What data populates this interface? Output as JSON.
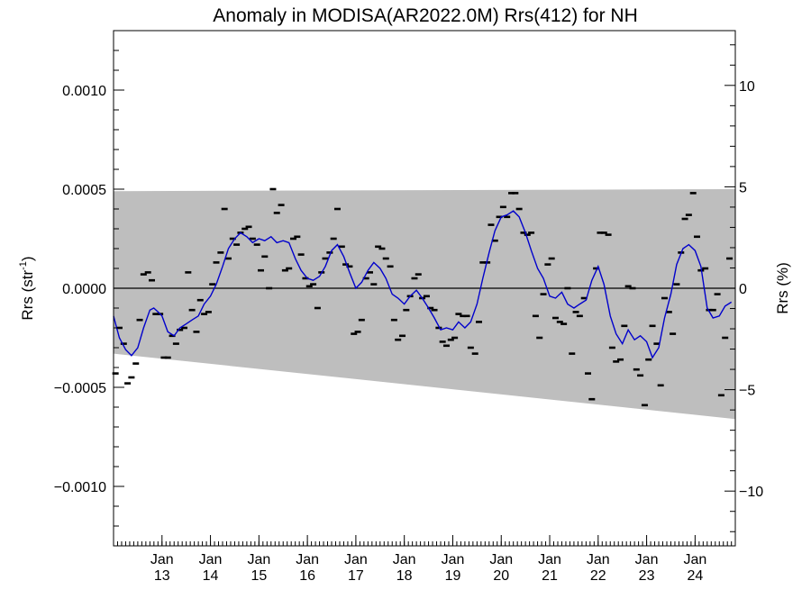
{
  "chart_data": {
    "type": "line",
    "title": "Anomaly in MODISA(AR2022.0M) Rrs(412) for NH",
    "ylabel_left": "Rrs (str",
    "ylabel_left_sup": "-1",
    "ylabel_left_close": ")",
    "ylabel_right": "Rrs (%)",
    "xlim": [
      2012.0,
      2024.83
    ],
    "ylim_left": [
      -0.0013,
      0.0013
    ],
    "ylim_right": [
      -12.7,
      12.7
    ],
    "left_ticks": [
      {
        "value": 0.001,
        "label": "0.0010"
      },
      {
        "value": 0.0005,
        "label": "0.0005"
      },
      {
        "value": 0.0,
        "label": "0.0000"
      },
      {
        "value": -0.0005,
        "label": "−0.0005"
      },
      {
        "value": -0.001,
        "label": "−0.0010"
      }
    ],
    "right_ticks": [
      {
        "value": 10,
        "label": "10"
      },
      {
        "value": 5,
        "label": "5"
      },
      {
        "value": 0,
        "label": "0"
      },
      {
        "value": -5,
        "label": "−5"
      },
      {
        "value": -10,
        "label": "−10"
      }
    ],
    "x_ticks": [
      {
        "value": 2013.0,
        "line1": "Jan",
        "line2": "13"
      },
      {
        "value": 2014.0,
        "line1": "Jan",
        "line2": "14"
      },
      {
        "value": 2015.0,
        "line1": "Jan",
        "line2": "15"
      },
      {
        "value": 2016.0,
        "line1": "Jan",
        "line2": "16"
      },
      {
        "value": 2017.0,
        "line1": "Jan",
        "line2": "17"
      },
      {
        "value": 2018.0,
        "line1": "Jan",
        "line2": "18"
      },
      {
        "value": 2019.0,
        "line1": "Jan",
        "line2": "19"
      },
      {
        "value": 2020.0,
        "line1": "Jan",
        "line2": "20"
      },
      {
        "value": 2021.0,
        "line1": "Jan",
        "line2": "21"
      },
      {
        "value": 2022.0,
        "line1": "Jan",
        "line2": "22"
      },
      {
        "value": 2023.0,
        "line1": "Jan",
        "line2": "23"
      },
      {
        "value": 2024.0,
        "line1": "Jan",
        "line2": "24"
      }
    ],
    "envelope": {
      "color": "#bebebe",
      "upper": [
        [
          2012.0,
          0.00049
        ],
        [
          2024.83,
          0.0005
        ]
      ],
      "lower": [
        [
          2012.0,
          -0.00033
        ],
        [
          2024.83,
          -0.00066
        ]
      ]
    },
    "zero_line": 0.0,
    "monthly_anomaly": {
      "color": "#000000",
      "points": [
        [
          2012.04,
          -0.00043
        ],
        [
          2012.12,
          -0.0002
        ],
        [
          2012.21,
          -0.00028
        ],
        [
          2012.29,
          -0.00048
        ],
        [
          2012.37,
          -0.00045
        ],
        [
          2012.46,
          -0.00038
        ],
        [
          2012.54,
          -0.00016
        ],
        [
          2012.62,
          7e-05
        ],
        [
          2012.71,
          8e-05
        ],
        [
          2012.79,
          4e-05
        ],
        [
          2012.87,
          -0.00013
        ],
        [
          2012.96,
          -0.00013
        ],
        [
          2013.04,
          -0.00035
        ],
        [
          2013.12,
          -0.00035
        ],
        [
          2013.21,
          -0.00024
        ],
        [
          2013.29,
          -0.00028
        ],
        [
          2013.37,
          -0.00021
        ],
        [
          2013.46,
          -0.0002
        ],
        [
          2013.54,
          8e-05
        ],
        [
          2013.62,
          -0.00011
        ],
        [
          2013.71,
          -0.00022
        ],
        [
          2013.79,
          -6e-05
        ],
        [
          2013.87,
          -0.00013
        ],
        [
          2013.96,
          -0.00012
        ],
        [
          2014.04,
          2e-05
        ],
        [
          2014.12,
          0.00013
        ],
        [
          2014.21,
          0.00018
        ],
        [
          2014.29,
          0.0004
        ],
        [
          2014.37,
          0.00015
        ],
        [
          2014.46,
          0.00025
        ],
        [
          2014.54,
          0.00022
        ],
        [
          2014.62,
          0.00028
        ],
        [
          2014.71,
          0.0003
        ],
        [
          2014.79,
          0.00031
        ],
        [
          2014.87,
          0.00025
        ],
        [
          2014.96,
          0.00022
        ],
        [
          2015.04,
          9e-05
        ],
        [
          2015.12,
          0.00016
        ],
        [
          2015.21,
          0.0
        ],
        [
          2015.29,
          0.0005
        ],
        [
          2015.37,
          0.00038
        ],
        [
          2015.46,
          0.00042
        ],
        [
          2015.54,
          9e-05
        ],
        [
          2015.62,
          0.0001
        ],
        [
          2015.71,
          0.00025
        ],
        [
          2015.79,
          0.00026
        ],
        [
          2015.87,
          0.00017
        ],
        [
          2015.96,
          5e-05
        ],
        [
          2016.04,
          1e-05
        ],
        [
          2016.12,
          2e-05
        ],
        [
          2016.21,
          -0.0001
        ],
        [
          2016.29,
          8e-05
        ],
        [
          2016.37,
          0.00015
        ],
        [
          2016.46,
          0.00018
        ],
        [
          2016.54,
          0.00025
        ],
        [
          2016.62,
          0.0004
        ],
        [
          2016.71,
          0.00021
        ],
        [
          2016.79,
          0.00012
        ],
        [
          2016.87,
          0.00011
        ],
        [
          2016.96,
          -0.00023
        ],
        [
          2017.04,
          -0.00022
        ],
        [
          2017.12,
          -0.00016
        ],
        [
          2017.21,
          5e-05
        ],
        [
          2017.29,
          8e-05
        ],
        [
          2017.37,
          2e-05
        ],
        [
          2017.46,
          0.00021
        ],
        [
          2017.54,
          0.0002
        ],
        [
          2017.62,
          0.00015
        ],
        [
          2017.71,
          0.00011
        ],
        [
          2017.79,
          -0.00016
        ],
        [
          2017.87,
          -0.00026
        ],
        [
          2017.96,
          -0.00024
        ],
        [
          2018.04,
          -0.00011
        ],
        [
          2018.12,
          -4e-05
        ],
        [
          2018.21,
          5e-05
        ],
        [
          2018.29,
          7e-05
        ],
        [
          2018.37,
          -5e-05
        ],
        [
          2018.46,
          -4e-05
        ],
        [
          2018.54,
          -0.0001
        ],
        [
          2018.62,
          -0.00011
        ],
        [
          2018.71,
          -0.0002
        ],
        [
          2018.79,
          -0.00027
        ],
        [
          2018.87,
          -0.00029
        ],
        [
          2018.96,
          -0.00026
        ],
        [
          2019.04,
          -0.00025
        ],
        [
          2019.12,
          -0.00013
        ],
        [
          2019.21,
          -0.00014
        ],
        [
          2019.29,
          -0.00014
        ],
        [
          2019.37,
          -0.0003
        ],
        [
          2019.46,
          -0.00033
        ],
        [
          2019.54,
          -0.00017
        ],
        [
          2019.62,
          0.00013
        ],
        [
          2019.71,
          0.00013
        ],
        [
          2019.79,
          0.00032
        ],
        [
          2019.87,
          0.00024
        ],
        [
          2019.96,
          0.00036
        ],
        [
          2020.04,
          0.00041
        ],
        [
          2020.12,
          0.00036
        ],
        [
          2020.21,
          0.00048
        ],
        [
          2020.29,
          0.00048
        ],
        [
          2020.37,
          0.0004
        ],
        [
          2020.46,
          0.00028
        ],
        [
          2020.54,
          0.00027
        ],
        [
          2020.62,
          0.00028
        ],
        [
          2020.71,
          -0.00014
        ],
        [
          2020.79,
          -0.00025
        ],
        [
          2020.87,
          -3e-05
        ],
        [
          2020.96,
          0.00012
        ],
        [
          2021.04,
          0.00015
        ],
        [
          2021.12,
          -0.00015
        ],
        [
          2021.21,
          -0.00017
        ],
        [
          2021.29,
          -0.00018
        ],
        [
          2021.37,
          0.0
        ],
        [
          2021.46,
          -0.00033
        ],
        [
          2021.54,
          -0.00012
        ],
        [
          2021.62,
          -0.00014
        ],
        [
          2021.71,
          -5e-05
        ],
        [
          2021.79,
          -0.00043
        ],
        [
          2021.87,
          -0.00056
        ],
        [
          2021.96,
          0.0001
        ],
        [
          2022.04,
          0.00028
        ],
        [
          2022.12,
          0.00028
        ],
        [
          2022.21,
          0.00027
        ],
        [
          2022.29,
          -0.0003
        ],
        [
          2022.37,
          -0.00037
        ],
        [
          2022.46,
          -0.00036
        ],
        [
          2022.54,
          -0.00019
        ],
        [
          2022.62,
          1e-05
        ],
        [
          2022.71,
          0.0
        ],
        [
          2022.79,
          -0.00041
        ],
        [
          2022.87,
          -0.00044
        ],
        [
          2022.96,
          -0.00059
        ],
        [
          2023.04,
          -0.00036
        ],
        [
          2023.12,
          -0.00019
        ],
        [
          2023.21,
          -0.00028
        ],
        [
          2023.29,
          -0.00049
        ],
        [
          2023.37,
          -5e-05
        ],
        [
          2023.46,
          -0.00012
        ],
        [
          2023.54,
          -0.00023
        ],
        [
          2023.62,
          2e-05
        ],
        [
          2023.71,
          0.00018
        ],
        [
          2023.79,
          0.00035
        ],
        [
          2023.87,
          0.00037
        ],
        [
          2023.96,
          0.00048
        ],
        [
          2024.04,
          0.00026
        ],
        [
          2024.12,
          9e-05
        ],
        [
          2024.21,
          0.0001
        ],
        [
          2024.29,
          -0.00011
        ],
        [
          2024.37,
          -0.00011
        ],
        [
          2024.46,
          -3e-05
        ],
        [
          2024.54,
          -0.00054
        ],
        [
          2024.62,
          -0.00025
        ],
        [
          2024.71,
          0.00015
        ]
      ]
    },
    "running_mean": {
      "color": "#0000cc",
      "points": [
        [
          2012.0,
          -0.00014
        ],
        [
          2012.12,
          -0.00025
        ],
        [
          2012.25,
          -0.00031
        ],
        [
          2012.37,
          -0.00034
        ],
        [
          2012.5,
          -0.0003
        ],
        [
          2012.62,
          -0.0002
        ],
        [
          2012.75,
          -0.00011
        ],
        [
          2012.83,
          -0.0001
        ],
        [
          2012.92,
          -0.00012
        ],
        [
          2013.0,
          -0.00014
        ],
        [
          2013.12,
          -0.00022
        ],
        [
          2013.25,
          -0.00024
        ],
        [
          2013.37,
          -0.0002
        ],
        [
          2013.5,
          -0.00018
        ],
        [
          2013.62,
          -0.00016
        ],
        [
          2013.75,
          -0.00014
        ],
        [
          2013.87,
          -8e-05
        ],
        [
          2014.0,
          -4e-05
        ],
        [
          2014.12,
          2e-05
        ],
        [
          2014.25,
          0.00011
        ],
        [
          2014.37,
          0.0002
        ],
        [
          2014.5,
          0.00025
        ],
        [
          2014.62,
          0.00028
        ],
        [
          2014.75,
          0.00026
        ],
        [
          2014.87,
          0.00023
        ],
        [
          2015.0,
          0.00025
        ],
        [
          2015.12,
          0.00024
        ],
        [
          2015.25,
          0.00026
        ],
        [
          2015.37,
          0.00023
        ],
        [
          2015.5,
          0.00024
        ],
        [
          2015.62,
          0.00023
        ],
        [
          2015.75,
          0.00015
        ],
        [
          2015.87,
          9e-05
        ],
        [
          2016.0,
          5e-05
        ],
        [
          2016.12,
          4e-05
        ],
        [
          2016.25,
          6e-05
        ],
        [
          2016.37,
          0.00011
        ],
        [
          2016.5,
          0.00019
        ],
        [
          2016.62,
          0.00022
        ],
        [
          2016.75,
          0.00016
        ],
        [
          2016.87,
          8e-05
        ],
        [
          2017.0,
          0.0
        ],
        [
          2017.12,
          3e-05
        ],
        [
          2017.25,
          9e-05
        ],
        [
          2017.37,
          0.00013
        ],
        [
          2017.5,
          0.0001
        ],
        [
          2017.62,
          5e-05
        ],
        [
          2017.75,
          -3e-05
        ],
        [
          2017.87,
          -5e-05
        ],
        [
          2018.0,
          -8e-05
        ],
        [
          2018.12,
          -4e-05
        ],
        [
          2018.25,
          -1e-05
        ],
        [
          2018.37,
          -5e-05
        ],
        [
          2018.5,
          -0.0001
        ],
        [
          2018.62,
          -0.00015
        ],
        [
          2018.75,
          -0.00021
        ],
        [
          2018.87,
          -0.0002
        ],
        [
          2019.0,
          -0.00021
        ],
        [
          2019.12,
          -0.00017
        ],
        [
          2019.25,
          -0.0002
        ],
        [
          2019.37,
          -0.00017
        ],
        [
          2019.5,
          -8e-05
        ],
        [
          2019.62,
          5e-05
        ],
        [
          2019.75,
          0.00018
        ],
        [
          2019.87,
          0.00029
        ],
        [
          2020.0,
          0.00036
        ],
        [
          2020.12,
          0.00037
        ],
        [
          2020.25,
          0.00039
        ],
        [
          2020.37,
          0.00036
        ],
        [
          2020.5,
          0.00028
        ],
        [
          2020.62,
          0.00019
        ],
        [
          2020.75,
          0.0001
        ],
        [
          2020.87,
          5e-05
        ],
        [
          2021.0,
          -4e-05
        ],
        [
          2021.12,
          -5e-05
        ],
        [
          2021.25,
          -2e-05
        ],
        [
          2021.37,
          -8e-05
        ],
        [
          2021.5,
          -0.0001
        ],
        [
          2021.62,
          -8e-05
        ],
        [
          2021.75,
          -6e-05
        ],
        [
          2021.87,
          4e-05
        ],
        [
          2022.0,
          0.00011
        ],
        [
          2022.12,
          2e-05
        ],
        [
          2022.25,
          -0.00014
        ],
        [
          2022.37,
          -0.00023
        ],
        [
          2022.5,
          -0.00028
        ],
        [
          2022.62,
          -0.00021
        ],
        [
          2022.75,
          -0.00026
        ],
        [
          2022.87,
          -0.00024
        ],
        [
          2023.0,
          -0.00027
        ],
        [
          2023.12,
          -0.00035
        ],
        [
          2023.25,
          -0.0003
        ],
        [
          2023.37,
          -0.00015
        ],
        [
          2023.5,
          -3e-05
        ],
        [
          2023.62,
          0.00012
        ],
        [
          2023.75,
          0.0002
        ],
        [
          2023.87,
          0.00022
        ],
        [
          2024.0,
          0.00019
        ],
        [
          2024.12,
          0.00011
        ],
        [
          2024.25,
          -0.0001
        ],
        [
          2024.37,
          -0.00015
        ],
        [
          2024.5,
          -0.00014
        ],
        [
          2024.62,
          -9e-05
        ],
        [
          2024.75,
          -7e-05
        ]
      ]
    },
    "grid": false,
    "legend": "none"
  }
}
